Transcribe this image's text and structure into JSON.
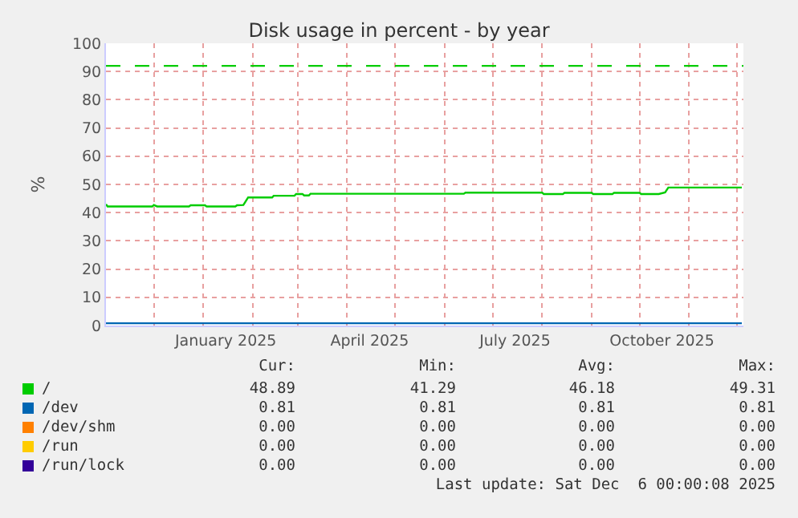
{
  "chart_data": {
    "type": "line",
    "title": "Disk usage in percent - by year",
    "ylabel": "%",
    "xlim": [
      "2024-11-02",
      "2025-12-06"
    ],
    "xticks": [
      {
        "value": "2025-01-16",
        "label": "January 2025"
      },
      {
        "value": "2025-04-16",
        "label": "April 2025"
      },
      {
        "value": "2025-07-16",
        "label": "July 2025"
      },
      {
        "value": "2025-10-16",
        "label": "October 2025"
      }
    ],
    "ylim": [
      0,
      100
    ],
    "yticks": [
      0,
      10,
      20,
      30,
      40,
      50,
      60,
      70,
      80,
      90,
      100
    ],
    "grid": true,
    "legend": "bottom",
    "series": [
      {
        "name": "/run/lock",
        "color": "#330099",
        "values": [
          null
        ]
      },
      {
        "name": "/run",
        "color": "#ffcc00",
        "values": [
          null
        ]
      },
      {
        "name": "/dev/shm",
        "color": "#ff8000",
        "values": [
          null
        ]
      },
      {
        "name": "/dev",
        "color": "#0066b3",
        "x": [
          "2024-11-02",
          "2025-12-05"
        ],
        "values": [
          0.81,
          0.81
        ]
      },
      {
        "name": "/",
        "color": "#00cc00",
        "x": [
          "2024-11-02",
          "2024-11-03",
          "2024-12-01",
          "2024-12-02",
          "2024-12-04",
          "2024-12-24",
          "2024-12-25",
          "2025-01-03",
          "2025-01-04",
          "2025-01-22",
          "2025-01-23",
          "2025-01-27",
          "2025-01-30",
          "2025-02-14",
          "2025-02-15",
          "2025-02-28",
          "2025-03-01",
          "2025-03-05",
          "2025-03-06",
          "2025-03-09",
          "2025-03-10",
          "2025-06-14",
          "2025-06-15",
          "2025-08-02",
          "2025-08-03",
          "2025-08-15",
          "2025-08-16",
          "2025-09-02",
          "2025-09-03",
          "2025-09-15",
          "2025-09-16",
          "2025-10-02",
          "2025-10-03",
          "2025-10-14",
          "2025-10-18",
          "2025-10-20",
          "2025-12-05"
        ],
        "values": [
          43.0,
          42.2,
          42.2,
          42.7,
          42.2,
          42.2,
          42.6,
          42.6,
          42.2,
          42.2,
          42.6,
          42.7,
          45.4,
          45.4,
          46.0,
          46.0,
          46.6,
          46.6,
          46.1,
          46.1,
          46.7,
          46.7,
          47.1,
          47.1,
          46.6,
          46.6,
          47.0,
          47.0,
          46.6,
          46.6,
          47.0,
          47.0,
          46.6,
          46.6,
          47.2,
          48.9,
          48.9
        ]
      }
    ],
    "ref_lines": [
      {
        "axis": "y",
        "value": 92,
        "color": "#00cc00",
        "line_style": "dashed"
      }
    ],
    "annotations": [
      "Cur:",
      "Min:",
      "Avg:",
      "Max:",
      "48.89",
      "41.29",
      "46.18",
      "49.31",
      "0.81",
      "0.81",
      "0.81",
      "0.81",
      "0.00",
      "0.00",
      "0.00",
      "0.00",
      "0.00",
      "0.00",
      "0.00",
      "0.00",
      "0.00",
      "0.00",
      "0.00",
      "0.00",
      "Last update: Sat Dec  6 00:00:08 2025"
    ]
  }
}
